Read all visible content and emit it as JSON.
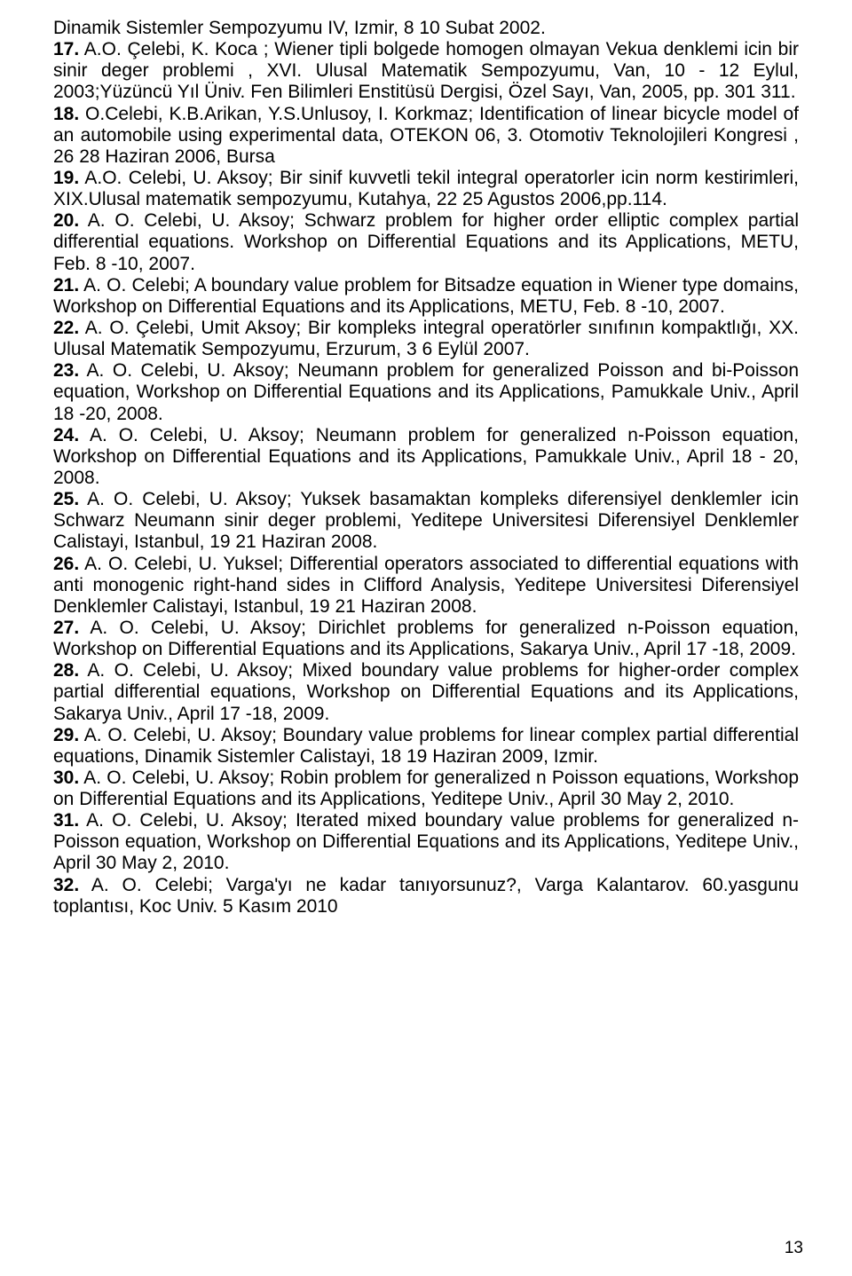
{
  "page": {
    "number": "13",
    "font_family": "Arial",
    "font_size_pt": 12,
    "text_color": "#000000",
    "background_color": "#ffffff"
  },
  "prelude": "Dinamik Sistemler Sempozyumu IV, Izmir, 8 10 Subat  2002.",
  "items": [
    {
      "n": "17.",
      "text": "A.O. Çelebi, K. Koca ; Wiener tipli bolgede homogen olmayan Vekua denklemi icin bir sinir deger problemi , XVI. Ulusal Matematik Sempozyumu, Van, 10 - 12 Eylul, 2003;Yüzüncü Yıl Üniv. Fen Bilimleri Enstitüsü Dergisi, Özel Sayı, Van, 2005, pp. 301 311."
    },
    {
      "n": "18.",
      "text": "O.Celebi, K.B.Arikan, Y.S.Unlusoy, I. Korkmaz; Identification of linear bicycle model of an automobile using experimental data, OTEKON 06, 3. Otomotiv Teknolojileri Kongresi , 26 28 Haziran 2006, Bursa"
    },
    {
      "n": "19.",
      "text": "A.O. Celebi, U. Aksoy; Bir sinif kuvvetli tekil integral operatorler icin norm kestirimleri, XIX.Ulusal matematik sempozyumu, Kutahya, 22 25 Agustos 2006,pp.114."
    },
    {
      "n": "20.",
      "text": "A. O. Celebi, U. Aksoy; Schwarz problem for higher order elliptic complex partial differential equations. Workshop on Differential Equations and its Applications, METU, Feb. 8 -10, 2007."
    },
    {
      "n": "21.",
      "text": "A. O. Celebi; A boundary value problem for Bitsadze equation in Wiener type domains, Workshop on Differential Equations and its Applications, METU, Feb. 8 -10, 2007."
    },
    {
      "n": "22.",
      "text": "A. O. Çelebi, Umit Aksoy; Bir kompleks integral operatörler sınıfının kompaktlığı, XX. Ulusal Matematik Sempozyumu, Erzurum, 3 6 Eylül 2007."
    },
    {
      "n": "23.",
      "text": "A. O. Celebi, U. Aksoy; Neumann problem for generalized Poisson and bi-Poisson equation, Workshop on Differential Equations and its Applications, Pamukkale Univ., April 18 -20, 2008."
    },
    {
      "n": "24.",
      "text": "A. O. Celebi, U. Aksoy; Neumann problem for generalized n-Poisson equation, Workshop on Differential Equations and its Applications, Pamukkale Univ., April 18 - 20, 2008."
    },
    {
      "n": "25.",
      "text": "A. O. Celebi, U. Aksoy; Yuksek basamaktan kompleks diferensiyel denklemler icin Schwarz Neumann sinir deger problemi, Yeditepe Universitesi Diferensiyel Denklemler Calistayi, Istanbul, 19 21 Haziran 2008."
    },
    {
      "n": "26.",
      "text": "A. O. Celebi, U. Yuksel; Differential operators associated to differential equations with anti monogenic right-hand sides in Clifford Analysis, Yeditepe Universitesi Diferensiyel Denklemler Calistayi, Istanbul, 19 21 Haziran 2008."
    },
    {
      "n": "27.",
      "text": "A. O. Celebi, U. Aksoy; Dirichlet problems for generalized n-Poisson equation, Workshop on Differential Equations and its Applications, Sakarya Univ., April 17 -18, 2009."
    },
    {
      "n": "28.",
      "text": "A. O. Celebi, U. Aksoy; Mixed boundary value problems for higher-order complex partial differential equations, Workshop on Differential Equations and its Applications, Sakarya Univ., April 17 -18, 2009."
    },
    {
      "n": "29.",
      "text": "A. O. Celebi, U. Aksoy; Boundary value problems for linear complex partial differential equations, Dinamik Sistemler Calistayi, 18 19 Haziran 2009, Izmir."
    },
    {
      "n": "30.",
      "text": "A. O. Celebi, U. Aksoy; Robin problem for generalized n Poisson equations, Workshop on Differential Equations and its Applications, Yeditepe Univ., April 30 May 2, 2010."
    },
    {
      "n": "31.",
      "text": "A. O. Celebi, U. Aksoy; Iterated mixed boundary value problems for generalized n-Poisson equation, Workshop on Differential Equations and its Applications, Yeditepe Univ., April 30 May 2, 2010."
    },
    {
      "n": "32.",
      "text": "A. O. Celebi; Varga'yı ne kadar tanıyorsunuz?, Varga Kalantarov. 60.yasgunu toplantısı, Koc Univ. 5 Kasım 2010"
    }
  ]
}
